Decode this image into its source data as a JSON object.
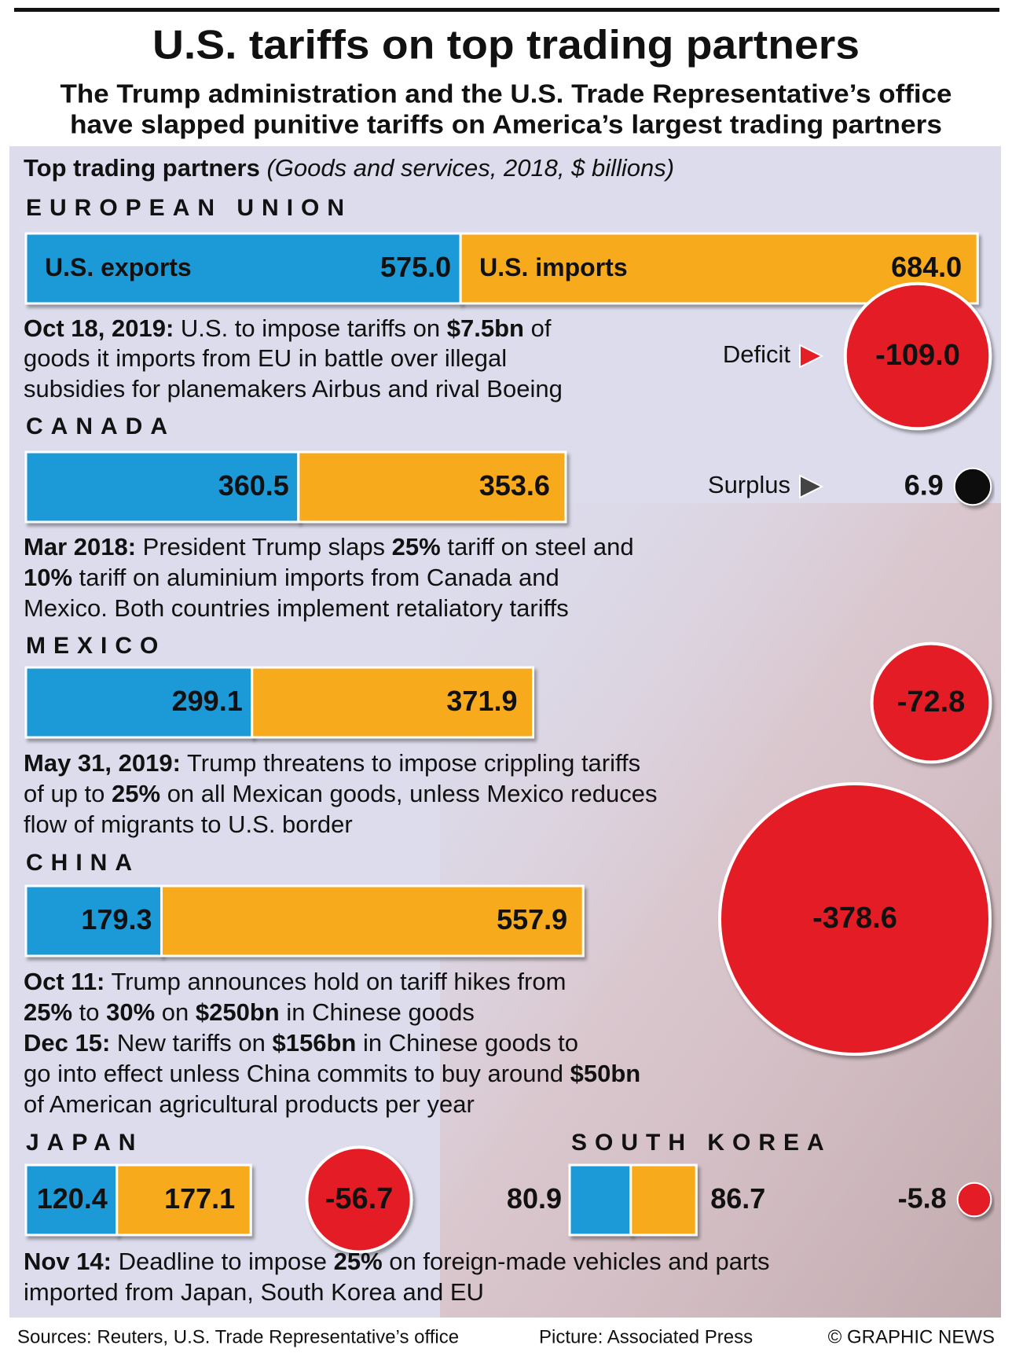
{
  "title": "U.S. tariffs on top trading partners",
  "subtitle": [
    "The Trump administration and the U.S. Trade Representative’s office",
    "have slapped punitive tariffs on America’s largest trading partners"
  ],
  "panel_title": "Top trading partners",
  "panel_subtitle": " (Goods and services, 2018, $ billions)",
  "labels": {
    "exports": "U.S. exports",
    "imports": "U.S. imports",
    "deficit": "Deficit",
    "surplus": "Surplus"
  },
  "colors": {
    "exports": "#1b9ad7",
    "imports": "#f6aa1c",
    "imports_text": "#c1272d",
    "deficit": "#e41f26",
    "surplus": "#111111",
    "korea_exports_text": "#1a6aad"
  },
  "partners": [
    {
      "name": "EUROPEAN UNION",
      "values": [
        575.0,
        684.0,
        -109.0
      ],
      "value_labels": [
        "575.0",
        "684.0",
        "-109.0"
      ],
      "note": [
        [
          {
            "text": "Oct 18, 2019:",
            "bold": true
          },
          " U.S. to impose tariffs on ",
          {
            "text": "$7.5bn",
            "bold": true
          },
          " of"
        ],
        [
          "goods it imports from EU in battle over illegal"
        ],
        [
          "subsidies for planemakers Airbus and rival Boeing"
        ]
      ]
    },
    {
      "name": "CANADA",
      "values": [
        360.5,
        353.6,
        6.9
      ],
      "note": [
        [
          {
            "text": "Mar 2018:",
            "bold": true
          },
          " President Trump slaps ",
          {
            "text": "25%",
            "bold": true
          },
          " tariff on steel and"
        ],
        [
          {
            "text": "10%",
            "bold": true
          },
          " tariff on aluminium imports from Canada and"
        ],
        [
          "Mexico. Both countries implement retaliatory tariffs"
        ]
      ]
    },
    {
      "name": "MEXICO",
      "values": [
        299.1,
        371.9,
        -72.8
      ],
      "note": [
        [
          {
            "text": "May 31, 2019:",
            "bold": true
          },
          " Trump threatens to impose crippling tariffs"
        ],
        [
          "of up to ",
          {
            "text": "25%",
            "bold": true
          },
          " on all Mexican goods, unless Mexico reduces"
        ],
        [
          "flow of migrants to U.S. border"
        ]
      ]
    },
    {
      "name": "CHINA",
      "values": [
        179.3,
        557.9,
        -378.6
      ],
      "note": [
        [
          {
            "text": "Oct 11:",
            "bold": true
          },
          " Trump announces hold on tariff hikes from"
        ],
        [
          {
            "text": "25%",
            "bold": true
          },
          " to ",
          {
            "text": "30%",
            "bold": true
          },
          " on ",
          {
            "text": "$250bn",
            "bold": true
          },
          " in Chinese goods"
        ],
        [
          {
            "text": "Dec 15:",
            "bold": true
          },
          " New tariffs on ",
          {
            "text": "$156bn",
            "bold": true
          },
          " in Chinese goods to"
        ],
        [
          "go into effect unless China commits to buy around ",
          {
            "text": "$50bn",
            "bold": true
          }
        ],
        [
          "of American agricultural products per year"
        ]
      ]
    },
    {
      "name": "JAPAN",
      "values": [
        120.4,
        177.1,
        -56.7
      ],
      "note": []
    },
    {
      "name": "SOUTH KOREA",
      "values": [
        80.9,
        86.7,
        -5.8
      ],
      "note": []
    }
  ],
  "final_note": [
    [
      {
        "text": "Nov 14:",
        "bold": true
      },
      " Deadline to impose ",
      {
        "text": "25%",
        "bold": true
      },
      " on foreign-made vehicles and parts"
    ],
    [
      "imported from Japan, South Korea and EU"
    ]
  ],
  "footer": [
    "Sources: Reuters, U.S. Trade Representative’s office",
    "Picture: Associated Press",
    "© GRAPHIC NEWS"
  ]
}
